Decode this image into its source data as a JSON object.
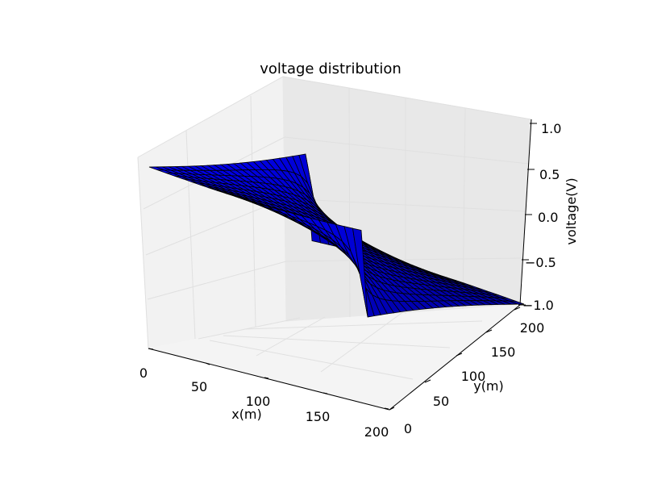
{
  "chart_data": {
    "type": "surface",
    "title": "voltage distribution",
    "xlabel": "x(m)",
    "ylabel": "y(m)",
    "zlabel": "voltage(V)",
    "xlim": [
      0,
      200
    ],
    "ylim": [
      0,
      200
    ],
    "zlim": [
      -1.0,
      1.0
    ],
    "xticks": [
      "0",
      "50",
      "100",
      "150",
      "200"
    ],
    "yticks": [
      "0",
      "50",
      "100",
      "150",
      "200"
    ],
    "zticks": [
      "−1.0",
      "−0.5",
      "0.0",
      "0.5",
      "1.0"
    ],
    "grid": true,
    "edge_voltage": 0.0,
    "surface_color": "#0000ff",
    "edge_color": "#000000",
    "corner_values": [
      {
        "x": 200,
        "y": 0,
        "z": -1.0
      },
      {
        "x": 0,
        "y": 200,
        "z": 1.0
      }
    ]
  }
}
